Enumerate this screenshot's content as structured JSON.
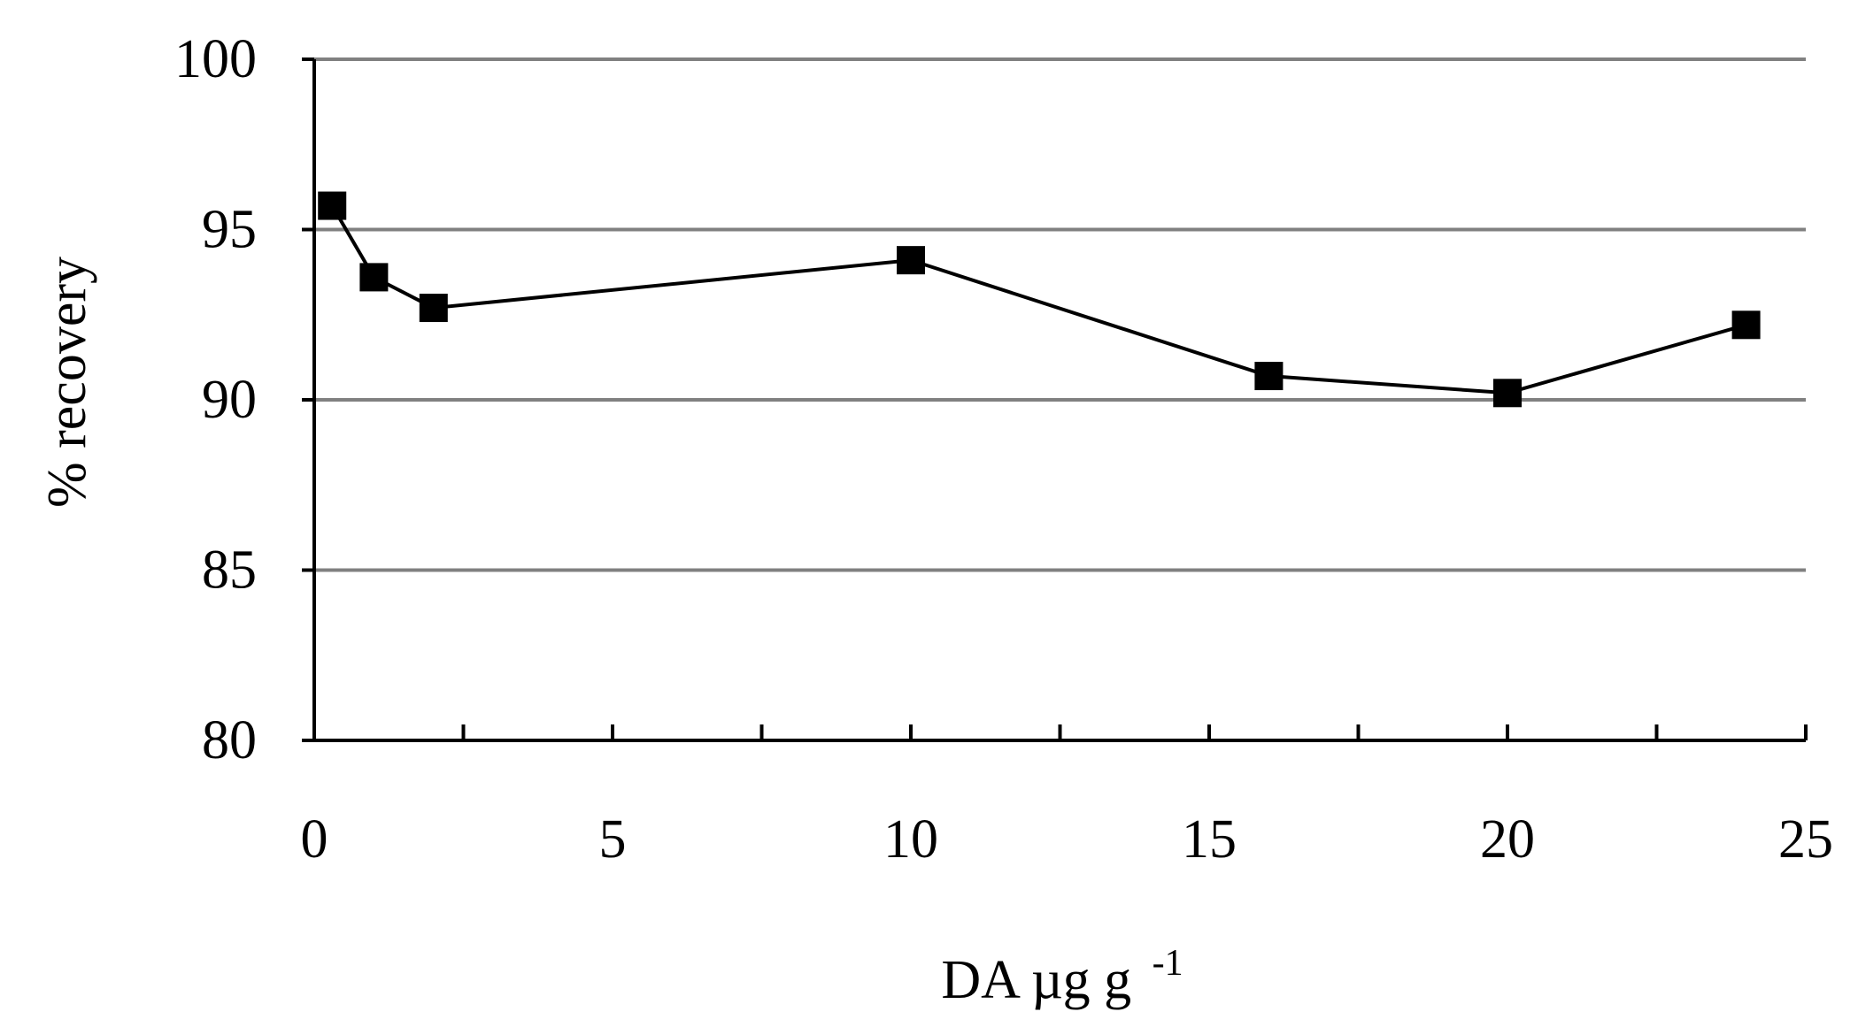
{
  "chart_data": {
    "type": "line",
    "title": "",
    "xlabel": "DA µg g",
    "xlabel_superscript": "-1",
    "ylabel": "% recovery",
    "xlim": [
      0,
      25
    ],
    "ylim": [
      80,
      100
    ],
    "x_ticks": [
      0,
      5,
      10,
      15,
      20,
      25
    ],
    "x_minor_ticks": [
      2.5,
      7.5,
      12.5,
      17.5,
      22.5
    ],
    "y_ticks": [
      80,
      85,
      90,
      95,
      100
    ],
    "grid": "horizontal",
    "legend": "none",
    "series": [
      {
        "x": [
          0.3,
          1,
          2,
          10,
          16,
          20,
          24
        ],
        "y": [
          95.7,
          93.6,
          92.7,
          94.1,
          90.7,
          90.2,
          92.2
        ],
        "marker": "square",
        "color": "#000000"
      }
    ],
    "colors": {
      "line": "#000000",
      "marker": "#000000",
      "grid": "#808080",
      "axis": "#000000"
    }
  }
}
